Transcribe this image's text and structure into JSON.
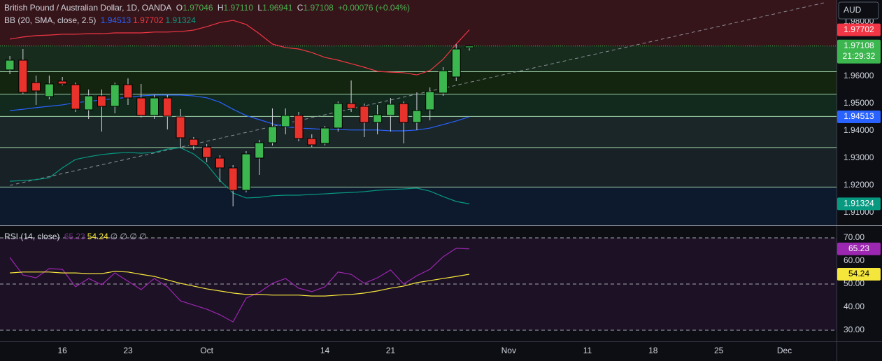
{
  "chart_data": [
    {
      "type": "candlestick",
      "title": "British Pound / Australian Dollar, 1D, OANDA",
      "ohlc_legend": [
        {
          "key": "O",
          "text": "1.97046"
        },
        {
          "key": "H",
          "text": "1.97110"
        },
        {
          "key": "L",
          "text": "1.96941"
        },
        {
          "key": "C",
          "text": "1.97108"
        }
      ],
      "change": "+0.00076 (+0.04%)",
      "currency": "AUD",
      "up_color": "#3cb64f",
      "down_color": "#e8322c",
      "x": [
        0,
        1,
        2,
        3,
        4,
        5,
        6,
        7,
        8,
        9,
        10,
        11,
        12,
        13,
        14,
        15,
        16,
        17,
        18,
        19,
        20,
        21,
        22,
        23,
        24,
        25,
        26,
        27,
        28,
        29,
        30,
        31,
        32,
        33,
        34,
        35
      ],
      "open": [
        1.96231,
        1.9659,
        1.95769,
        1.95256,
        1.95821,
        1.95692,
        1.94769,
        1.95282,
        1.94897,
        1.95692,
        1.95205,
        1.94564,
        1.95205,
        1.94513,
        1.93692,
        1.9341,
        1.93,
        1.92641,
        1.91821,
        1.93,
        1.93564,
        1.94154,
        1.94564,
        1.93718,
        1.93538,
        1.94103,
        1.95,
        1.94897,
        1.94308,
        1.94564,
        1.95,
        1.94308,
        1.94769,
        1.95385,
        1.95974,
        1.97046
      ],
      "high": [
        1.96744,
        1.97,
        1.96026,
        1.96026,
        1.95974,
        1.95769,
        1.95513,
        1.95513,
        1.95769,
        1.95923,
        1.95718,
        1.95308,
        1.95308,
        1.94795,
        1.93769,
        1.93513,
        1.93103,
        1.92744,
        1.93256,
        1.93667,
        1.94821,
        1.94821,
        1.94692,
        1.93872,
        1.94179,
        1.95077,
        1.95846,
        1.95,
        1.94949,
        1.95205,
        1.95077,
        1.9541,
        1.9559,
        1.96333,
        1.97179,
        1.9711
      ],
      "low": [
        1.96077,
        1.95359,
        1.94949,
        1.95154,
        1.95667,
        1.94692,
        1.94436,
        1.93974,
        1.94641,
        1.94949,
        1.94487,
        1.94436,
        1.94051,
        1.93359,
        1.93308,
        1.92846,
        1.92128,
        1.91231,
        1.91744,
        1.92385,
        1.93462,
        1.93872,
        1.93615,
        1.9341,
        1.93462,
        1.93974,
        1.94692,
        1.93769,
        1.93872,
        1.93974,
        1.93538,
        1.94026,
        1.94385,
        1.95282,
        1.95821,
        1.96941
      ],
      "close": [
        1.9659,
        1.9541,
        1.95462,
        1.95718,
        1.95718,
        1.94795,
        1.95282,
        1.94897,
        1.95692,
        1.95205,
        1.94564,
        1.95205,
        1.94538,
        1.93744,
        1.93462,
        1.93026,
        1.92641,
        1.91821,
        1.93154,
        1.93564,
        1.94154,
        1.94564,
        1.93718,
        1.93487,
        1.94103,
        1.95,
        1.94821,
        1.94308,
        1.9459,
        1.94974,
        1.94308,
        1.94744,
        1.95436,
        1.96205,
        1.97,
        1.97108
      ],
      "indicator": {
        "label": "BB (20, SMA, close, 2.5)",
        "series": [
          {
            "color": "#2962ff",
            "legend": "1.94513",
            "values": [
              1.9474,
              1.9479,
              1.9485,
              1.949,
              1.9495,
              1.9503,
              1.9508,
              1.9513,
              1.9518,
              1.9523,
              1.9528,
              1.9531,
              1.9531,
              1.9531,
              1.9528,
              1.9521,
              1.9505,
              1.9479,
              1.9456,
              1.9441,
              1.9426,
              1.9415,
              1.941,
              1.9408,
              1.9405,
              1.9405,
              1.9403,
              1.9403,
              1.9403,
              1.94,
              1.94,
              1.9403,
              1.941,
              1.9423,
              1.9436,
              1.94513
            ]
          },
          {
            "color": "#f23645",
            "legend": "1.97702",
            "values": [
              1.9736,
              1.9744,
              1.9749,
              1.9751,
              1.9754,
              1.9754,
              1.9756,
              1.9756,
              1.9759,
              1.9759,
              1.9759,
              1.9762,
              1.9762,
              1.9764,
              1.9769,
              1.9782,
              1.9797,
              1.9805,
              1.979,
              1.9756,
              1.9718,
              1.9705,
              1.97,
              1.9687,
              1.9669,
              1.9659,
              1.9646,
              1.9633,
              1.9618,
              1.9615,
              1.9613,
              1.9605,
              1.9621,
              1.9662,
              1.9718,
              1.97702
            ]
          },
          {
            "color": "#089981",
            "legend": "1.91324",
            "values": [
              1.9215,
              1.9218,
              1.9221,
              1.9228,
              1.9264,
              1.9295,
              1.9305,
              1.9313,
              1.9318,
              1.9321,
              1.9318,
              1.9321,
              1.9333,
              1.9338,
              1.9315,
              1.9277,
              1.9218,
              1.9172,
              1.9154,
              1.9156,
              1.9162,
              1.9164,
              1.9164,
              1.9167,
              1.9169,
              1.9172,
              1.9174,
              1.9177,
              1.9182,
              1.9185,
              1.9187,
              1.919,
              1.9179,
              1.9159,
              1.9141,
              1.91324
            ]
          }
        ]
      },
      "trendline": {
        "x": [
          0,
          62
        ],
        "values": [
          1.92,
          1.9869
        ],
        "color": "#8a8f99"
      },
      "levels": [
        1.9618,
        1.9536,
        1.9454,
        1.934,
        1.9195
      ],
      "level_color": "#9fd3a8",
      "zone_colors": [
        "#36151a",
        "#172c1c",
        "#13240f",
        "#122a1d",
        "#1a2627",
        "#172126",
        "#0d1a2e"
      ],
      "price_tags": [
        {
          "value": 1.97702,
          "label": "1.97702",
          "color": "#f23645",
          "text_color": "#ffffff"
        },
        {
          "value": 1.97108,
          "label": "1.97108",
          "sub": "21:29:32",
          "color": "#3cb64f",
          "text_color": "#ffffff"
        },
        {
          "value": 1.94513,
          "label": "1.94513",
          "color": "#2962ff",
          "text_color": "#ffffff"
        },
        {
          "value": 1.91324,
          "label": "1.91324",
          "color": "#089981",
          "text_color": "#ffffff"
        }
      ],
      "xlim": [
        -0.75,
        62.97
      ],
      "xticks": [
        {
          "value": 4,
          "label": "16"
        },
        {
          "value": 9,
          "label": "23"
        },
        {
          "value": 15,
          "label": "Oct"
        },
        {
          "value": 24,
          "label": "14"
        },
        {
          "value": 29,
          "label": "21"
        },
        {
          "value": 38,
          "label": "Nov"
        },
        {
          "value": 44,
          "label": "11"
        },
        {
          "value": 49,
          "label": "18"
        },
        {
          "value": 54,
          "label": "25"
        },
        {
          "value": 59,
          "label": "Dec"
        }
      ],
      "ylim": [
        1.90538,
        1.98795
      ],
      "yticks": [
        {
          "value": 1.98,
          "label": "1.98000"
        },
        {
          "value": 1.97,
          "label": "1.97000"
        },
        {
          "value": 1.96,
          "label": "1.96000"
        },
        {
          "value": 1.95,
          "label": "1.95000"
        },
        {
          "value": 1.94,
          "label": "1.94000"
        },
        {
          "value": 1.93,
          "label": "1.93000"
        },
        {
          "value": 1.92,
          "label": "1.92000"
        },
        {
          "value": 1.91,
          "label": "1.91000"
        }
      ]
    },
    {
      "type": "line",
      "title": "RSI (14, close)",
      "extra_legend": "∅ ∅ ∅ ∅",
      "x": [
        0,
        1,
        2,
        3,
        4,
        5,
        6,
        7,
        8,
        9,
        10,
        11,
        12,
        13,
        14,
        15,
        16,
        17,
        18,
        19,
        20,
        21,
        22,
        23,
        24,
        25,
        26,
        27,
        28,
        29,
        30,
        31,
        32,
        33,
        34,
        35
      ],
      "series": [
        {
          "color": "#9c27b0",
          "legend": "65.23",
          "values": [
            61.5,
            53.9,
            52.7,
            56.7,
            56.4,
            48.8,
            52.4,
            49.7,
            54.8,
            51.2,
            47.6,
            52.4,
            48.8,
            42.7,
            40.9,
            39.1,
            36.7,
            33.6,
            43.9,
            46.4,
            50.3,
            52.4,
            48.2,
            46.7,
            48.8,
            55.2,
            54.2,
            50.3,
            52.7,
            56.1,
            50.0,
            53.6,
            56.4,
            61.8,
            65.5,
            65.23
          ]
        },
        {
          "color": "#f5e63c",
          "legend": "54.24",
          "values": [
            54.8,
            55.2,
            55.2,
            55.2,
            54.8,
            54.8,
            54.5,
            54.5,
            55.5,
            55.2,
            54.2,
            53.3,
            51.8,
            50.3,
            49.1,
            47.9,
            47.0,
            46.1,
            45.5,
            45.5,
            45.2,
            45.2,
            45.2,
            44.8,
            44.8,
            45.2,
            45.5,
            46.1,
            47.0,
            48.2,
            49.1,
            50.6,
            51.5,
            52.4,
            53.3,
            54.24
          ]
        }
      ],
      "band": [
        30,
        70
      ],
      "band_color": "#1d1126",
      "dashed_levels": [
        70,
        50,
        30
      ],
      "price_tags": [
        {
          "value": 65.23,
          "label": "65.23",
          "color": "#9c27b0",
          "text_color": "#ffffff"
        },
        {
          "value": 54.24,
          "label": "54.24",
          "color": "#f5e63c",
          "text_color": "#000000"
        }
      ],
      "ylim": [
        25.15,
        75.15
      ],
      "yticks": [
        {
          "value": 70,
          "label": "70.00"
        },
        {
          "value": 60,
          "label": "60.00"
        },
        {
          "value": 50,
          "label": "50.00"
        },
        {
          "value": 40,
          "label": "40.00"
        },
        {
          "value": 30,
          "label": "30.00"
        }
      ]
    }
  ]
}
